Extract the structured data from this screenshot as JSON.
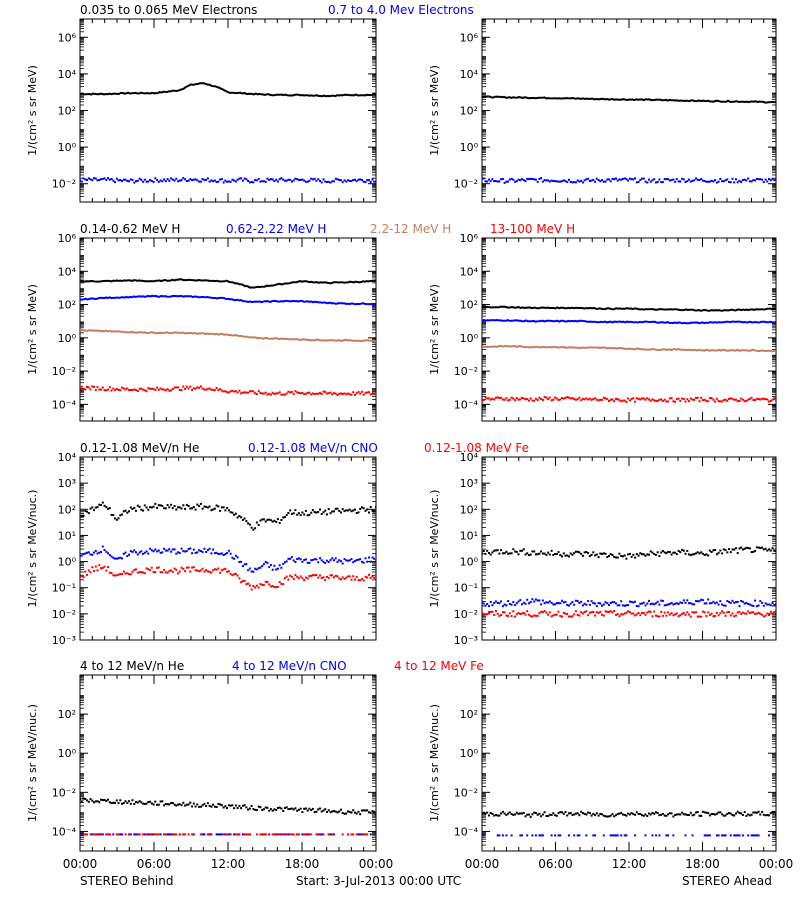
{
  "footer": {
    "left_label": "STEREO Behind",
    "center_label": "Start:  3-Jul-2013 00:00 UTC",
    "right_label": "STEREO Ahead"
  },
  "colors": {
    "black": "#000000",
    "blue": "#0000ff",
    "tan": "#c08060",
    "red": "#ff0000"
  },
  "x_ticks": [
    "00:00",
    "06:00",
    "12:00",
    "18:00",
    "00:00"
  ],
  "chart_data": [
    {
      "type": "scatter",
      "panel": "electrons",
      "side": "behind",
      "ylog": true,
      "ylim_exp": [
        -3,
        7
      ],
      "tick_exps": [
        -2,
        0,
        2,
        4,
        6
      ],
      "ylabel": "1/(cm² s sr MeV)",
      "title_row": true,
      "x_hours": [
        0,
        2,
        4,
        6,
        8,
        9,
        10,
        11,
        12,
        13,
        14,
        16,
        18,
        20,
        22,
        24
      ],
      "series": [
        {
          "name": "0.035 to 0.065 MeV Electrons",
          "color": "#000000",
          "legend_x": 80,
          "style": "line",
          "log10_values": [
            2.9,
            2.9,
            2.95,
            2.95,
            3.1,
            3.4,
            3.5,
            3.3,
            3.0,
            2.95,
            2.9,
            2.85,
            2.85,
            2.8,
            2.85,
            2.85
          ]
        },
        {
          "name": "0.7 to 4.0 Mev Electrons",
          "color": "#0000ff",
          "legend_x": 328,
          "style": "dots",
          "log10_values": [
            -1.8,
            -1.8,
            -1.85,
            -1.8,
            -1.8,
            -1.75,
            -1.8,
            -1.8,
            -1.85,
            -1.8,
            -1.85,
            -1.8,
            -1.8,
            -1.85,
            -1.8,
            -1.8
          ]
        }
      ]
    },
    {
      "type": "scatter",
      "panel": "electrons",
      "side": "ahead",
      "ylog": true,
      "ylim_exp": [
        -3,
        7
      ],
      "tick_exps": [
        -2,
        0,
        2,
        4,
        6
      ],
      "ylabel": "1/(cm² s sr MeV)",
      "x_hours": [
        0,
        2,
        4,
        6,
        8,
        10,
        12,
        14,
        16,
        18,
        20,
        22,
        24
      ],
      "series": [
        {
          "name": "",
          "color": "#000000",
          "style": "line",
          "log10_values": [
            2.75,
            2.72,
            2.7,
            2.68,
            2.65,
            2.62,
            2.6,
            2.58,
            2.55,
            2.52,
            2.5,
            2.48,
            2.45
          ]
        },
        {
          "name": "",
          "color": "#0000ff",
          "style": "dots",
          "log10_values": [
            -1.8,
            -1.85,
            -1.8,
            -1.8,
            -1.85,
            -1.8,
            -1.8,
            -1.85,
            -1.8,
            -1.8,
            -1.85,
            -1.8,
            -1.85
          ]
        }
      ]
    },
    {
      "type": "scatter",
      "panel": "protons",
      "side": "behind",
      "ylog": true,
      "ylim_exp": [
        -5,
        6
      ],
      "tick_exps": [
        -4,
        -2,
        0,
        2,
        4,
        6
      ],
      "ylabel": "1/(cm² s sr MeV)",
      "title_row": true,
      "x_hours": [
        0,
        2,
        4,
        6,
        8,
        10,
        12,
        14,
        16,
        18,
        20,
        22,
        24
      ],
      "series": [
        {
          "name": "0.14-0.62 MeV H",
          "color": "#000000",
          "legend_x": 80,
          "style": "line",
          "log10_values": [
            3.4,
            3.4,
            3.45,
            3.4,
            3.5,
            3.45,
            3.4,
            3.0,
            3.2,
            3.4,
            3.3,
            3.35,
            3.4
          ]
        },
        {
          "name": "0.62-2.22 MeV H",
          "color": "#0000ff",
          "legend_x": 226,
          "style": "line",
          "log10_values": [
            2.3,
            2.4,
            2.45,
            2.5,
            2.5,
            2.45,
            2.35,
            2.15,
            2.2,
            2.2,
            2.1,
            2.05,
            2.05
          ]
        },
        {
          "name": "2.2-12 MeV H",
          "color": "#c08060",
          "legend_x": 370,
          "style": "line",
          "log10_values": [
            0.45,
            0.4,
            0.35,
            0.3,
            0.3,
            0.25,
            0.2,
            0.0,
            -0.05,
            -0.1,
            -0.15,
            -0.15,
            -0.2
          ]
        },
        {
          "name": "13-100 MeV H",
          "color": "#ff0000",
          "legend_x": 490,
          "style": "dots",
          "log10_values": [
            -3.0,
            -3.05,
            -3.1,
            -3.1,
            -3.05,
            -3.0,
            -3.2,
            -3.3,
            -3.35,
            -3.3,
            -3.35,
            -3.35,
            -3.35
          ]
        }
      ]
    },
    {
      "type": "scatter",
      "panel": "protons",
      "side": "ahead",
      "ylog": true,
      "ylim_exp": [
        -5,
        6
      ],
      "tick_exps": [
        -4,
        -2,
        0,
        2,
        4,
        6
      ],
      "ylabel": "1/(cm² s sr MeV)",
      "x_hours": [
        0,
        2,
        4,
        6,
        8,
        10,
        12,
        14,
        16,
        18,
        20,
        22,
        24
      ],
      "series": [
        {
          "name": "",
          "color": "#000000",
          "style": "line",
          "log10_values": [
            1.85,
            1.85,
            1.8,
            1.8,
            1.8,
            1.75,
            1.75,
            1.7,
            1.7,
            1.65,
            1.65,
            1.7,
            1.75
          ]
        },
        {
          "name": "",
          "color": "#0000ff",
          "style": "line",
          "log10_values": [
            1.05,
            1.05,
            1.0,
            1.0,
            1.0,
            0.95,
            0.95,
            0.95,
            0.9,
            0.9,
            0.95,
            0.95,
            0.95
          ]
        },
        {
          "name": "",
          "color": "#c08060",
          "style": "line",
          "log10_values": [
            -0.55,
            -0.5,
            -0.55,
            -0.55,
            -0.6,
            -0.6,
            -0.65,
            -0.7,
            -0.7,
            -0.75,
            -0.75,
            -0.75,
            -0.8
          ]
        },
        {
          "name": "",
          "color": "#ff0000",
          "style": "dots",
          "log10_values": [
            -3.7,
            -3.65,
            -3.7,
            -3.65,
            -3.7,
            -3.7,
            -3.75,
            -3.7,
            -3.75,
            -3.7,
            -3.75,
            -3.7,
            -3.75
          ]
        }
      ]
    },
    {
      "type": "scatter",
      "panel": "heavy_low",
      "side": "behind",
      "ylog": true,
      "ylim_exp": [
        -3,
        4
      ],
      "tick_exps": [
        -3,
        -2,
        -1,
        0,
        1,
        2,
        3,
        4
      ],
      "tick_labels": [
        "10⁻³",
        "10⁻²",
        "10⁻¹",
        "10⁰",
        "10¹",
        "10²",
        "10³",
        "10⁴"
      ],
      "ylabel": "1/(cm² s sr MeV/nuc.)",
      "title_row": true,
      "x_hours": [
        0,
        1,
        2,
        3,
        4,
        6,
        8,
        10,
        12,
        13,
        14,
        15,
        16,
        17,
        18,
        20,
        22,
        24
      ],
      "series": [
        {
          "name": "0.12-1.08 MeV/n He",
          "color": "#000000",
          "legend_x": 80,
          "style": "dots",
          "log10_values": [
            1.8,
            2.0,
            2.2,
            1.6,
            2.0,
            2.1,
            2.05,
            2.1,
            2.0,
            1.7,
            1.3,
            1.6,
            1.5,
            1.9,
            1.85,
            1.9,
            1.95,
            2.0
          ]
        },
        {
          "name": "0.12-1.08 MeV/n CNO",
          "color": "#0000ff",
          "legend_x": 248,
          "style": "dots",
          "log10_values": [
            0.2,
            0.35,
            0.5,
            0.0,
            0.35,
            0.4,
            0.4,
            0.4,
            0.35,
            0.0,
            -0.4,
            -0.1,
            -0.3,
            0.1,
            0.05,
            0.05,
            0.0,
            0.1
          ]
        },
        {
          "name": "0.12-1.08 MeV Fe",
          "color": "#ff0000",
          "legend_x": 424,
          "style": "dots",
          "log10_values": [
            -0.6,
            -0.3,
            -0.2,
            -0.6,
            -0.4,
            -0.3,
            -0.35,
            -0.3,
            -0.35,
            -0.7,
            -1.0,
            -0.8,
            -0.9,
            -0.6,
            -0.6,
            -0.6,
            -0.65,
            -0.6
          ]
        }
      ]
    },
    {
      "type": "scatter",
      "panel": "heavy_low",
      "side": "ahead",
      "ylog": true,
      "ylim_exp": [
        -3,
        4
      ],
      "tick_exps": [
        -3,
        -2,
        -1,
        0,
        1,
        2,
        3,
        4
      ],
      "tick_labels": [
        "10⁻³",
        "10⁻²",
        "10⁻¹",
        "10⁰",
        "10¹",
        "10²",
        "10³",
        "10⁴"
      ],
      "ylabel": "1/(cm² s sr MeV/nuc.)",
      "x_hours": [
        0,
        2,
        4,
        6,
        8,
        10,
        12,
        14,
        16,
        18,
        20,
        22,
        24
      ],
      "series": [
        {
          "name": "",
          "color": "#000000",
          "style": "dots",
          "log10_values": [
            0.35,
            0.4,
            0.35,
            0.3,
            0.3,
            0.25,
            0.2,
            0.3,
            0.35,
            0.3,
            0.4,
            0.45,
            0.4
          ]
        },
        {
          "name": "",
          "color": "#0000ff",
          "style": "dots",
          "log10_values": [
            -1.6,
            -1.6,
            -1.5,
            -1.6,
            -1.6,
            -1.6,
            -1.6,
            -1.6,
            -1.6,
            -1.5,
            -1.6,
            -1.6,
            -1.6
          ]
        },
        {
          "name": "",
          "color": "#ff0000",
          "style": "dots",
          "log10_values": [
            -2.0,
            -2.0,
            -2.0,
            -2.0,
            -2.0,
            -2.0,
            -2.0,
            -2.0,
            -2.0,
            -2.0,
            -2.0,
            -2.0,
            -2.0
          ]
        }
      ]
    },
    {
      "type": "scatter",
      "panel": "heavy_high",
      "side": "behind",
      "ylog": true,
      "ylim_exp": [
        -5,
        4
      ],
      "tick_exps": [
        -4,
        -2,
        0,
        2
      ],
      "ylabel": "1/(cm² s sr MeV/nuc.)",
      "title_row": true,
      "x_hours": [
        0,
        2,
        4,
        6,
        8,
        10,
        12,
        14,
        16,
        18,
        20,
        22,
        24
      ],
      "series": [
        {
          "name": "4 to 12 MeV/n He",
          "color": "#000000",
          "legend_x": 80,
          "style": "dots",
          "log10_values": [
            -2.4,
            -2.45,
            -2.5,
            -2.55,
            -2.6,
            -2.65,
            -2.7,
            -2.8,
            -2.85,
            -2.9,
            -2.95,
            -3.0,
            -3.05
          ]
        },
        {
          "name": "4 to 12 MeV/n CNO",
          "color": "#0000ff",
          "legend_x": 232,
          "style": "dots",
          "log10_values": [
            -4.15,
            -4.15,
            -4.15,
            -4.15,
            -4.15,
            -4.15,
            -4.15,
            -4.15,
            -4.15,
            -4.15,
            -4.15,
            -4.15,
            -4.15
          ]
        },
        {
          "name": "4 to 12 MeV Fe",
          "color": "#ff0000",
          "legend_x": 394,
          "style": "dots",
          "log10_values": [
            -4.15,
            -4.15,
            -4.15,
            -4.15,
            -4.15,
            -4.15,
            -4.15,
            -4.15,
            -4.15,
            -4.15,
            -4.15,
            -4.15,
            -4.15
          ]
        }
      ]
    },
    {
      "type": "scatter",
      "panel": "heavy_high",
      "side": "ahead",
      "ylog": true,
      "ylim_exp": [
        -5,
        4
      ],
      "tick_exps": [
        -4,
        -2,
        0,
        2
      ],
      "ylabel": "1/(cm² s sr MeV/nuc.)",
      "x_hours": [
        0,
        2,
        4,
        6,
        8,
        10,
        12,
        14,
        16,
        18,
        20,
        22,
        24
      ],
      "series": [
        {
          "name": "",
          "color": "#000000",
          "style": "dots",
          "log10_values": [
            -3.1,
            -3.1,
            -3.15,
            -3.1,
            -3.1,
            -3.15,
            -3.1,
            -3.1,
            -3.15,
            -3.1,
            -3.1,
            -3.1,
            -3.1
          ]
        },
        {
          "name": "",
          "color": "#0000ff",
          "style": "dots",
          "log10_values": [
            -4.2,
            -4.2,
            -4.2,
            -4.2,
            -4.2,
            -4.2,
            -4.2,
            -4.2,
            -4.2,
            -4.2,
            -4.2,
            -4.2,
            -4.2
          ]
        }
      ]
    }
  ]
}
